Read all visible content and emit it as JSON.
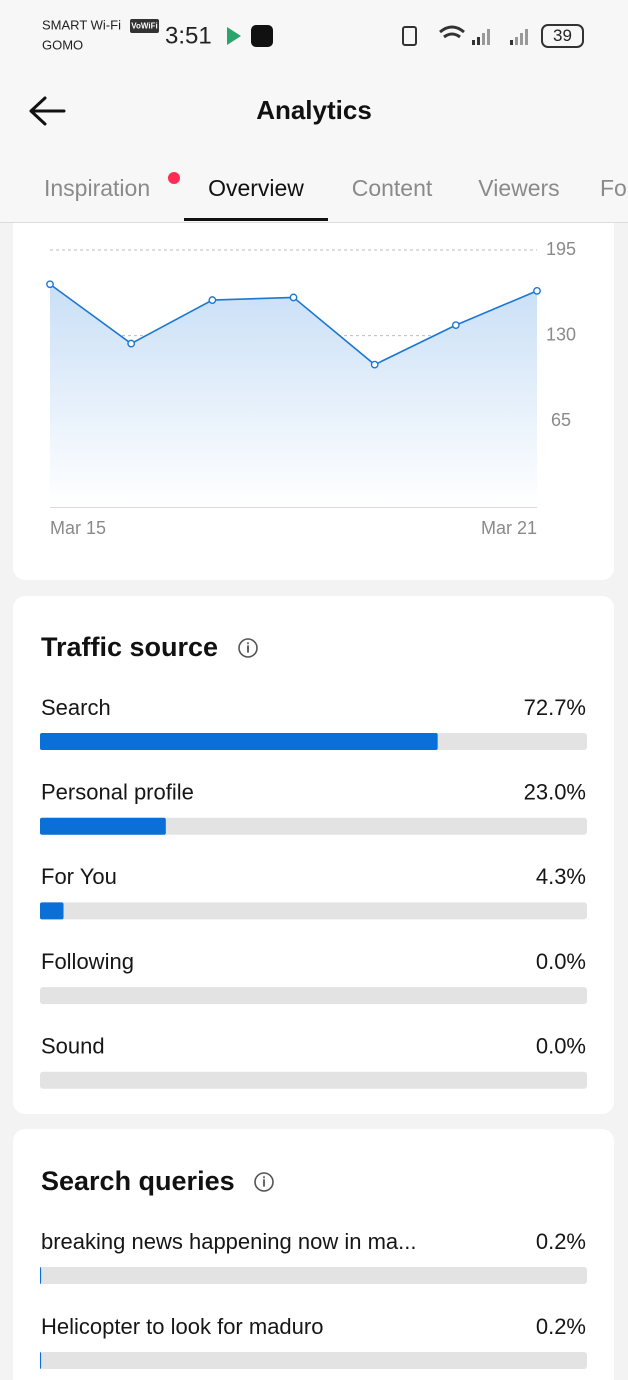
{
  "status_bar": {
    "carrier": "SMART Wi-Fi",
    "wifi_badge": "VoWiFi",
    "carrier_2": "GOMO",
    "time": "3:51",
    "battery": "39"
  },
  "header": {
    "title": "Analytics"
  },
  "tabs": [
    "Inspiration",
    "Overview",
    "Content",
    "Viewers",
    "Fo"
  ],
  "chart_data": {
    "type": "line",
    "categories": [
      "Mar 15",
      null,
      null,
      null,
      null,
      null,
      "Mar 21"
    ],
    "values": [
      169,
      124,
      157,
      159,
      108,
      138,
      164
    ],
    "color": "#1a78d2",
    "ylim": [
      0,
      195
    ],
    "yticks": [
      65,
      130,
      195
    ],
    "grid": true
  },
  "traffic_source": {
    "title": "Traffic source",
    "items": [
      {
        "label": "Search",
        "value": 72.7,
        "value_label": "72.7%"
      },
      {
        "label": "Personal profile",
        "value": 23.0,
        "value_label": "23.0%"
      },
      {
        "label": "For You",
        "value": 4.3,
        "value_label": "4.3%"
      },
      {
        "label": "Following",
        "value": 0.0,
        "value_label": "0.0%"
      },
      {
        "label": "Sound",
        "value": 0.0,
        "value_label": "0.0%"
      }
    ]
  },
  "search_queries": {
    "title": "Search queries",
    "items": [
      {
        "label": "breaking news happening now in ma...",
        "value": 0.2,
        "value_label": "0.2%"
      },
      {
        "label": "Helicopter to look for maduro",
        "value": 0.2,
        "value_label": "0.2%"
      }
    ]
  }
}
